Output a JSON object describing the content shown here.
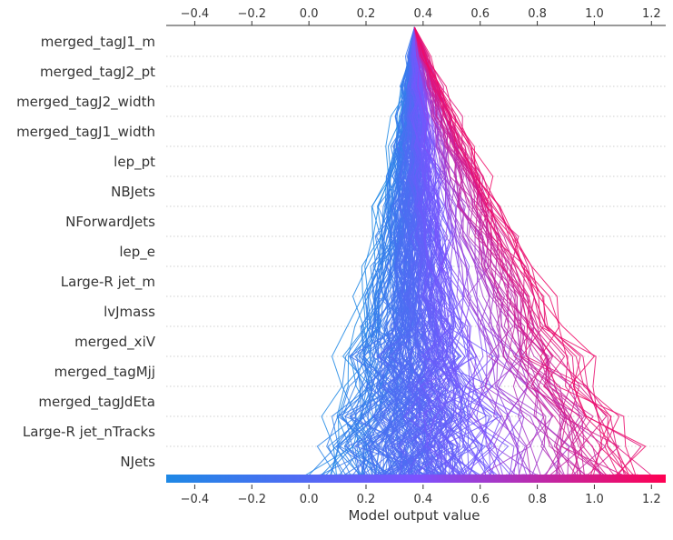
{
  "chart_data": {
    "type": "line",
    "xlabel": "Model output value",
    "ylabel": "",
    "title": "",
    "xlim": [
      -0.5,
      1.25
    ],
    "x_ticks": [
      "−0.4",
      "−0.2",
      "0.0",
      "0.2",
      "0.4",
      "0.6",
      "0.8",
      "1.0",
      "1.2"
    ],
    "x_tick_values": [
      -0.4,
      -0.2,
      0.0,
      0.2,
      0.4,
      0.6,
      0.8,
      1.0,
      1.2
    ],
    "features": [
      "merged_tagJ1_m",
      "merged_tagJ2_pt",
      "merged_tagJ2_width",
      "merged_tagJ1_width",
      "lep_pt",
      "NBJets",
      "NForwardJets",
      "lep_e",
      "Large-R jet_m",
      "lvJmass",
      "merged_xiV",
      "merged_tagMjj",
      "merged_tagJdEta",
      "Large-R jet_nTracks",
      "NJets"
    ],
    "base_value": 0.37,
    "line_count": 260,
    "output_range": [
      0.05,
      1.22
    ],
    "colormap": {
      "low": "#1e88e5",
      "mid": "#7c52ff",
      "high": "#ff0052"
    },
    "grid": true
  }
}
